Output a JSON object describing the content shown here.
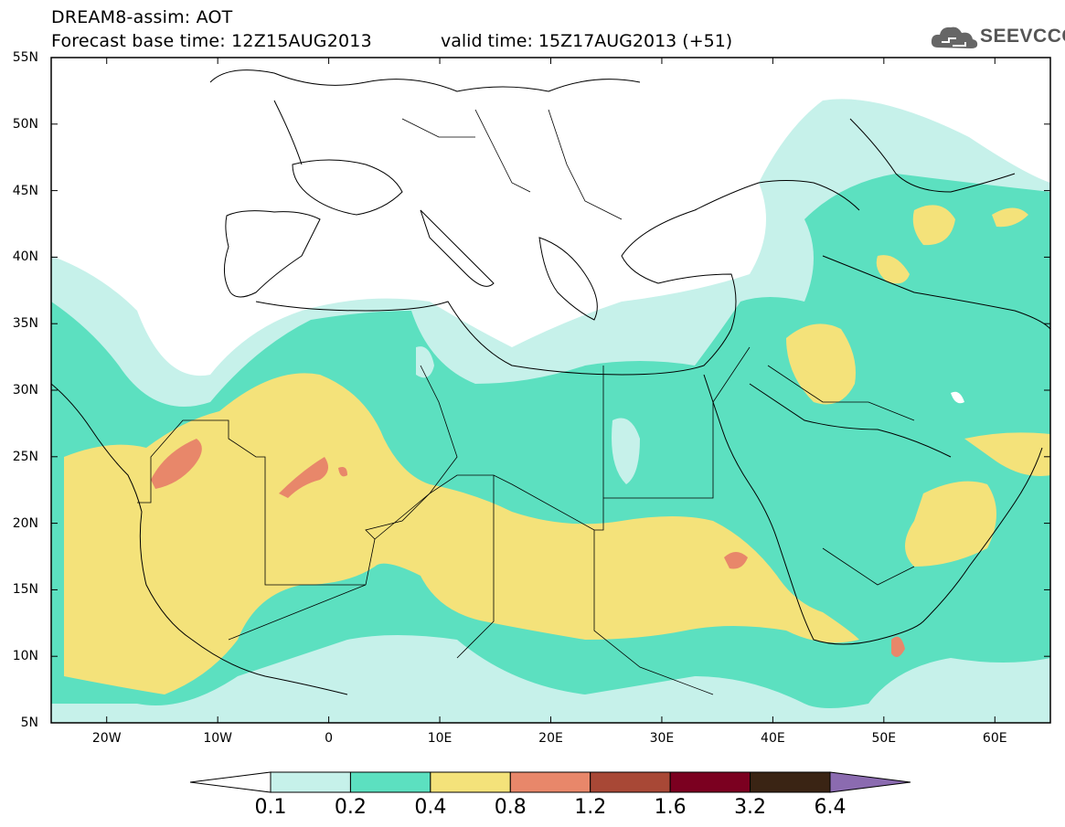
{
  "header": {
    "line1": "DREAM8-assim: AOT",
    "line2": "Forecast base time: 12Z15AUG2013",
    "valid_time": "valid time: 15Z17AUG2013 (+51)",
    "logo_text": "SEEVCCC",
    "logo_icon": "cloud-icon"
  },
  "map": {
    "lon_range": [
      -25,
      65
    ],
    "lat_range": [
      5,
      55
    ],
    "lon_ticks": [
      {
        "value": -20,
        "label": "20W"
      },
      {
        "value": -10,
        "label": "10W"
      },
      {
        "value": 0,
        "label": "0"
      },
      {
        "value": 10,
        "label": "10E"
      },
      {
        "value": 20,
        "label": "20E"
      },
      {
        "value": 30,
        "label": "30E"
      },
      {
        "value": 40,
        "label": "40E"
      },
      {
        "value": 50,
        "label": "50E"
      },
      {
        "value": 60,
        "label": "60E"
      }
    ],
    "lat_ticks": [
      {
        "value": 55,
        "label": "55N"
      },
      {
        "value": 50,
        "label": "50N"
      },
      {
        "value": 45,
        "label": "45N"
      },
      {
        "value": 40,
        "label": "40N"
      },
      {
        "value": 35,
        "label": "35N"
      },
      {
        "value": 30,
        "label": "30N"
      },
      {
        "value": 25,
        "label": "25N"
      },
      {
        "value": 20,
        "label": "20N"
      },
      {
        "value": 15,
        "label": "15N"
      },
      {
        "value": 10,
        "label": "10N"
      },
      {
        "value": 5,
        "label": "5N"
      }
    ]
  },
  "colorbar": {
    "levels": [
      "0.1",
      "0.2",
      "0.4",
      "0.8",
      "1.2",
      "1.6",
      "3.2",
      "6.4"
    ],
    "colors": [
      "#ffffff",
      "#c6f1ea",
      "#5ce0c0",
      "#f4e27a",
      "#e8876a",
      "#a84836",
      "#7b0020",
      "#3a2414",
      "#8b6bb0"
    ]
  }
}
